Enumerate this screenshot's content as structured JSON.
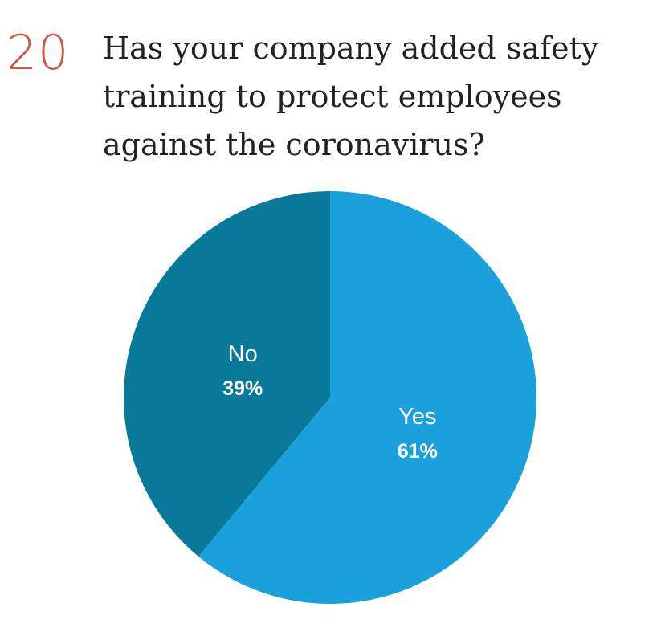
{
  "question": {
    "number": "20",
    "text": "Has your company added safety training to protect employees against the coronavirus?"
  },
  "chart_data": {
    "type": "pie",
    "title": "Has your company added safety training to protect employees against the coronavirus?",
    "slices": [
      {
        "label": "Yes",
        "value": 61,
        "value_label": "61%",
        "color": "#1aa0da"
      },
      {
        "label": "No",
        "value": 39,
        "value_label": "39%",
        "color": "#087998"
      }
    ],
    "start": "12 o'clock",
    "direction": "clockwise"
  },
  "colors": {
    "accent": "#cc5a43",
    "text": "#222222"
  }
}
